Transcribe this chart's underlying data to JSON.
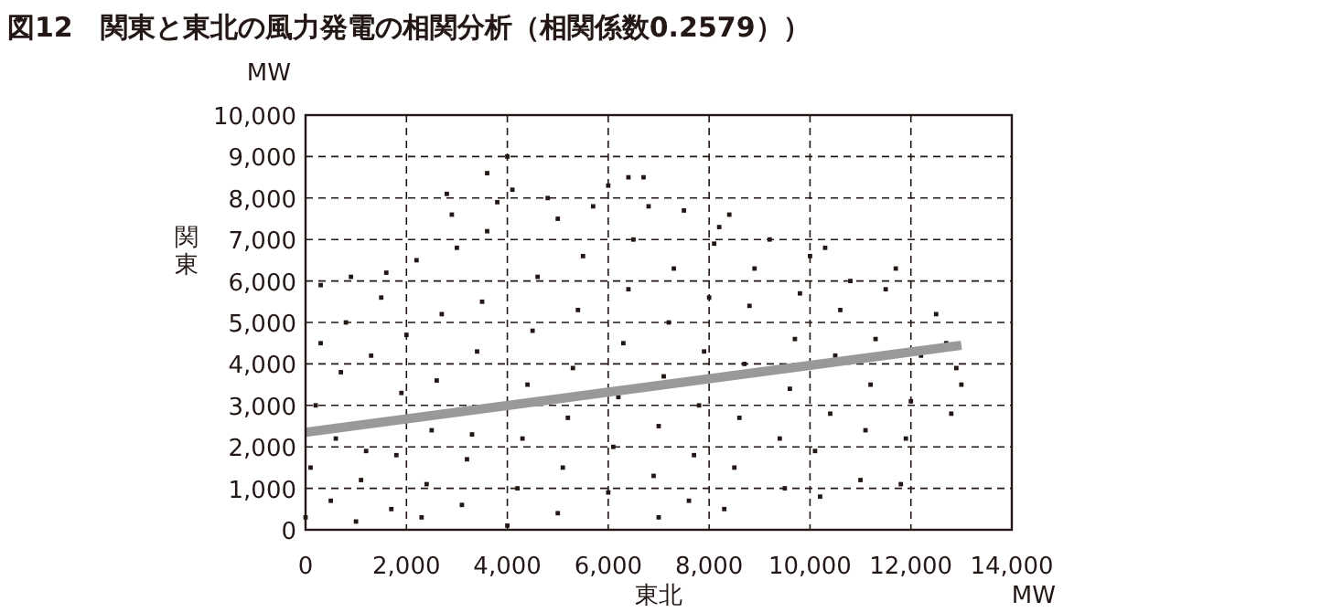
{
  "chart_data": {
    "type": "scatter",
    "title": "図12　関東と東北の風力発電の相関分析（相関係数0.2579））",
    "xlabel": "東北",
    "ylabel": "関東",
    "annotations": [
      "MW",
      "MW"
    ],
    "xlim": [
      0,
      14000
    ],
    "ylim": [
      0,
      10000
    ],
    "xticks": [
      0,
      {
        "value": 2000,
        "label": "2,000"
      },
      {
        "value": 4000,
        "label": "4,000"
      },
      {
        "value": 6000,
        "label": "6,000"
      },
      {
        "value": 8000,
        "label": "8,000"
      },
      {
        "value": 10000,
        "label": "10,000"
      },
      {
        "value": 12000,
        "label": "12,000"
      },
      {
        "value": 14000,
        "label": "14,000"
      }
    ],
    "yticks": [
      0,
      {
        "value": 1000,
        "label": "1,000"
      },
      {
        "value": 2000,
        "label": "2,000"
      },
      {
        "value": 3000,
        "label": "3,000"
      },
      {
        "value": 4000,
        "label": "4,000"
      },
      {
        "value": 5000,
        "label": "5,000"
      },
      {
        "value": 6000,
        "label": "6,000"
      },
      {
        "value": 7000,
        "label": "7,000"
      },
      {
        "value": 8000,
        "label": "8,000"
      },
      {
        "value": 9000,
        "label": "9,000"
      },
      {
        "value": 10000,
        "label": "10,000"
      }
    ],
    "grid": true,
    "marker": "square",
    "series": [
      {
        "type": "scatter",
        "color": "#231815",
        "x": [
          0,
          100,
          200,
          300,
          300,
          500,
          600,
          700,
          800,
          900,
          1000,
          1100,
          1200,
          1300,
          1500,
          1600,
          1700,
          1800,
          1900,
          2000,
          2200,
          2300,
          2400,
          2500,
          2600,
          2700,
          2800,
          2900,
          3000,
          3100,
          3200,
          3300,
          3400,
          3500,
          3600,
          3600,
          3800,
          4000,
          4100,
          4000,
          4200,
          4300,
          4400,
          4500,
          4600,
          4800,
          5000,
          5000,
          5100,
          5200,
          5300,
          5400,
          5500,
          5700,
          6000,
          6000,
          6100,
          6200,
          6300,
          6400,
          6500,
          6400,
          6700,
          6800,
          7000,
          6900,
          7000,
          7100,
          7200,
          7300,
          7500,
          7600,
          7700,
          7800,
          7900,
          8000,
          8100,
          8200,
          8400,
          8300,
          8500,
          8600,
          8700,
          8800,
          8900,
          9200,
          9500,
          9400,
          9600,
          9700,
          9800,
          10000,
          10300,
          10200,
          10100,
          10400,
          10500,
          10600,
          10800,
          11000,
          11100,
          11200,
          11300,
          11500,
          11700,
          11800,
          11900,
          12000,
          12200,
          12500,
          12800,
          13000,
          12900,
          12700
        ],
        "values": [
          300,
          1500,
          3000,
          4500,
          5900,
          700,
          2200,
          3800,
          5000,
          6100,
          200,
          1200,
          1900,
          4200,
          5600,
          6200,
          500,
          1800,
          3300,
          4700,
          6500,
          300,
          1100,
          2400,
          3600,
          5200,
          8100,
          7600,
          6800,
          600,
          1700,
          2300,
          4300,
          5500,
          7200,
          8600,
          7900,
          9000,
          8200,
          100,
          1000,
          2200,
          3500,
          4800,
          6100,
          8000,
          7500,
          400,
          1500,
          2700,
          3900,
          5300,
          6600,
          7800,
          8300,
          900,
          2000,
          3200,
          4500,
          5800,
          7000,
          8500,
          8500,
          7800,
          300,
          1300,
          2500,
          3700,
          5000,
          6300,
          7700,
          700,
          1800,
          3000,
          4300,
          5600,
          6900,
          7300,
          7600,
          500,
          1500,
          2700,
          4000,
          5400,
          6300,
          7000,
          1000,
          2200,
          3400,
          4600,
          5700,
          6600,
          6800,
          800,
          1900,
          2800,
          4200,
          5300,
          6000,
          1200,
          2400,
          3500,
          4600,
          5800,
          6300,
          1100,
          2200,
          3100,
          4200,
          5200,
          2800,
          3500,
          3900,
          4500
        ]
      },
      {
        "type": "line",
        "marker": "none",
        "color": "#999999",
        "x": [
          0,
          13000
        ],
        "values": [
          2350,
          4450
        ]
      }
    ]
  }
}
